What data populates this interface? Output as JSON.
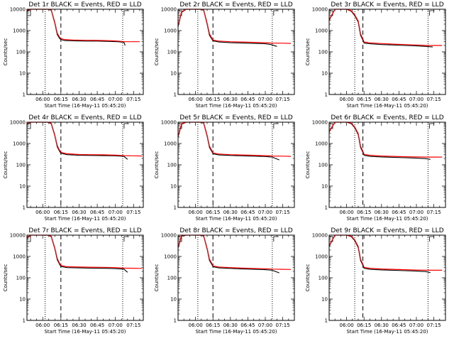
{
  "chart_data": {
    "type": "line",
    "layout": "3x3 grid",
    "x_tick_labels": [
      "06:00",
      "06:15",
      "06:30",
      "06:45",
      "07:00",
      "07:15"
    ],
    "y_tick_labels": [
      "1",
      "10",
      "100",
      "1000",
      "10000"
    ],
    "ylabel": "Counts/sec",
    "xlabel": "Start Time (16-May-11 05:45:20)",
    "yscale": "log",
    "ylim": [
      1,
      10000
    ],
    "grid": false,
    "colors": {
      "events": "#000000",
      "lld": "#ff0000",
      "markers": "#000000"
    },
    "panels": [
      {
        "title": "Det 1r BLACK = Events, RED = LLD",
        "xlim": [
          "05:47",
          "07:23"
        ],
        "dotted_lines": [
          "06:02",
          "07:06"
        ],
        "dashed_line": "06:15",
        "series": [
          {
            "name": "BLACK = Events",
            "x": [
              "05:47",
              "05:50",
              "05:55",
              "06:00",
              "06:04",
              "06:07",
              "06:10",
              "06:12",
              "06:14",
              "06:15",
              "06:18",
              "06:25",
              "06:35",
              "06:45",
              "06:55",
              "07:02",
              "07:07",
              "07:08"
            ],
            "values": [
              8500,
              10000,
              10000,
              10000,
              10000,
              9000,
              2200,
              650,
              420,
              380,
              340,
              330,
              320,
              320,
              310,
              300,
              280,
              200
            ]
          },
          {
            "name": "RED = LLD",
            "x": [
              "05:47",
              "05:50",
              "05:55",
              "06:00",
              "06:04",
              "06:07",
              "06:10",
              "06:12",
              "06:14",
              "06:15",
              "06:18",
              "06:25",
              "06:35",
              "06:45",
              "06:55",
              "07:02",
              "07:07",
              "07:15",
              "07:20"
            ],
            "values": [
              9000,
              10000,
              10000,
              10000,
              10000,
              9500,
              2400,
              750,
              480,
              420,
              380,
              360,
              350,
              345,
              335,
              320,
              300,
              300,
              300
            ]
          }
        ]
      },
      {
        "title": "Det 2r BLACK = Events, RED = LLD",
        "xlim": [
          "05:45",
          "07:25"
        ],
        "dotted_lines": [
          "06:02",
          "07:06"
        ],
        "dashed_line": "06:15",
        "series": [
          {
            "name": "BLACK = Events",
            "x": [
              "05:45",
              "05:48",
              "05:52",
              "05:56",
              "06:00",
              "06:04",
              "06:07",
              "06:10",
              "06:12",
              "06:14",
              "06:15",
              "06:20",
              "06:30",
              "06:40",
              "06:50",
              "07:00",
              "07:05",
              "07:10"
            ],
            "values": [
              1500,
              7000,
              10000,
              10000,
              10000,
              10000,
              9000,
              2000,
              600,
              400,
              330,
              290,
              270,
              260,
              250,
              240,
              220,
              180
            ]
          },
          {
            "name": "RED = LLD",
            "x": [
              "05:45",
              "05:48",
              "05:52",
              "05:56",
              "06:00",
              "06:04",
              "06:07",
              "06:10",
              "06:12",
              "06:14",
              "06:15",
              "06:20",
              "06:30",
              "06:40",
              "06:50",
              "07:00",
              "07:05",
              "07:15",
              "07:22"
            ],
            "values": [
              1600,
              7500,
              10000,
              10000,
              10000,
              10000,
              9500,
              2200,
              700,
              450,
              360,
              320,
              300,
              290,
              280,
              270,
              260,
              255,
              250
            ]
          }
        ]
      },
      {
        "title": "Det 3r BLACK = Events, RED = LLD",
        "xlim": [
          "05:45",
          "07:25"
        ],
        "dotted_lines": [
          "06:07",
          "07:10"
        ],
        "dashed_line": "06:14",
        "series": [
          {
            "name": "BLACK = Events",
            "x": [
              "05:45",
              "05:50",
              "05:55",
              "06:00",
              "06:04",
              "06:07",
              "06:10",
              "06:12",
              "06:14",
              "06:15",
              "06:20",
              "06:30",
              "06:40",
              "06:50",
              "07:00",
              "07:08",
              "07:14"
            ],
            "values": [
              3000,
              10000,
              10000,
              10000,
              8000,
              5000,
              2500,
              600,
              350,
              260,
              240,
              220,
              210,
              200,
              190,
              180,
              170
            ]
          },
          {
            "name": "RED = LLD",
            "x": [
              "05:45",
              "05:50",
              "05:55",
              "06:00",
              "06:04",
              "06:07",
              "06:10",
              "06:12",
              "06:14",
              "06:15",
              "06:20",
              "06:30",
              "06:40",
              "06:50",
              "07:00",
              "07:08",
              "07:15",
              "07:22"
            ],
            "values": [
              3200,
              10000,
              10000,
              10000,
              8500,
              5500,
              2800,
              700,
              400,
              290,
              265,
              245,
              230,
              220,
              210,
              200,
              200,
              200
            ]
          }
        ]
      },
      {
        "title": "Det 4r BLACK = Events, RED = LLD",
        "xlim": [
          "05:47",
          "07:23"
        ],
        "dotted_lines": [
          "06:02",
          "07:06"
        ],
        "dashed_line": "06:15",
        "series": [
          {
            "name": "BLACK = Events",
            "x": [
              "05:47",
              "05:50",
              "05:55",
              "06:00",
              "06:04",
              "06:07",
              "06:10",
              "06:12",
              "06:14",
              "06:15",
              "06:20",
              "06:30",
              "06:40",
              "06:50",
              "07:00",
              "07:07",
              "07:10"
            ],
            "values": [
              8000,
              10000,
              10000,
              10000,
              10000,
              8500,
              2300,
              700,
              420,
              350,
              300,
              280,
              275,
              270,
              265,
              250,
              180
            ]
          },
          {
            "name": "RED = LLD",
            "x": [
              "05:47",
              "05:50",
              "05:55",
              "06:00",
              "06:04",
              "06:07",
              "06:10",
              "06:12",
              "06:14",
              "06:15",
              "06:20",
              "06:30",
              "06:40",
              "06:50",
              "07:00",
              "07:07",
              "07:15",
              "07:22"
            ],
            "values": [
              8500,
              10000,
              10000,
              10000,
              10000,
              9000,
              2500,
              800,
              470,
              390,
              330,
              305,
              300,
              295,
              285,
              270,
              265,
              260
            ]
          }
        ]
      },
      {
        "title": "Det 5r BLACK = Events, RED = LLD",
        "xlim": [
          "05:45",
          "07:25"
        ],
        "dotted_lines": [
          "06:02",
          "07:06"
        ],
        "dashed_line": "06:15",
        "series": [
          {
            "name": "BLACK = Events",
            "x": [
              "05:45",
              "05:48",
              "05:52",
              "05:56",
              "06:00",
              "06:04",
              "06:07",
              "06:10",
              "06:12",
              "06:14",
              "06:15",
              "06:20",
              "06:30",
              "06:40",
              "06:50",
              "07:00",
              "07:06",
              "07:12"
            ],
            "values": [
              2000,
              8000,
              10000,
              10000,
              10000,
              10000,
              9000,
              2200,
              650,
              420,
              330,
              290,
              275,
              265,
              255,
              245,
              230,
              170
            ]
          },
          {
            "name": "RED = LLD",
            "x": [
              "05:45",
              "05:48",
              "05:52",
              "05:56",
              "06:00",
              "06:04",
              "06:07",
              "06:10",
              "06:12",
              "06:14",
              "06:15",
              "06:20",
              "06:30",
              "06:40",
              "06:50",
              "07:00",
              "07:06",
              "07:15",
              "07:22"
            ],
            "values": [
              2200,
              8500,
              10000,
              10000,
              10000,
              10000,
              9500,
              2400,
              750,
              470,
              360,
              320,
              300,
              290,
              280,
              270,
              260,
              255,
              250
            ]
          }
        ]
      },
      {
        "title": "Det 6r BLACK = Events, RED = LLD",
        "xlim": [
          "05:45",
          "07:25"
        ],
        "dotted_lines": [
          "06:07",
          "07:10"
        ],
        "dashed_line": "06:14",
        "series": [
          {
            "name": "BLACK = Events",
            "x": [
              "05:45",
              "05:50",
              "05:55",
              "06:00",
              "06:04",
              "06:07",
              "06:10",
              "06:12",
              "06:14",
              "06:15",
              "06:20",
              "06:30",
              "06:40",
              "06:50",
              "07:00",
              "07:08",
              "07:12"
            ],
            "values": [
              3500,
              10000,
              10000,
              10000,
              8500,
              5500,
              2600,
              650,
              380,
              280,
              250,
              235,
              225,
              215,
              205,
              195,
              180
            ]
          },
          {
            "name": "RED = LLD",
            "x": [
              "05:45",
              "05:50",
              "05:55",
              "06:00",
              "06:04",
              "06:07",
              "06:10",
              "06:12",
              "06:14",
              "06:15",
              "06:20",
              "06:30",
              "06:40",
              "06:50",
              "07:00",
              "07:08",
              "07:15",
              "07:22"
            ],
            "values": [
              3700,
              10000,
              10000,
              10000,
              9000,
              6000,
              2900,
              750,
              430,
              310,
              280,
              260,
              250,
              240,
              235,
              230,
              230,
              230
            ]
          }
        ]
      },
      {
        "title": "Det 7r BLACK = Events, RED = LLD",
        "xlim": [
          "05:47",
          "07:23"
        ],
        "dotted_lines": [
          "06:02",
          "07:06"
        ],
        "dashed_line": "06:15",
        "series": [
          {
            "name": "BLACK = Events",
            "x": [
              "05:47",
              "05:50",
              "05:55",
              "06:00",
              "06:04",
              "06:07",
              "06:10",
              "06:12",
              "06:14",
              "06:15",
              "06:20",
              "06:30",
              "06:40",
              "06:50",
              "07:00",
              "07:07",
              "07:10"
            ],
            "values": [
              7000,
              10000,
              10000,
              10000,
              10000,
              8500,
              2300,
              700,
              420,
              340,
              300,
              290,
              285,
              280,
              270,
              255,
              180
            ]
          },
          {
            "name": "RED = LLD",
            "x": [
              "05:47",
              "05:50",
              "05:55",
              "06:00",
              "06:04",
              "06:07",
              "06:10",
              "06:12",
              "06:14",
              "06:15",
              "06:20",
              "06:30",
              "06:40",
              "06:50",
              "07:00",
              "07:07",
              "07:15",
              "07:22"
            ],
            "values": [
              7500,
              10000,
              10000,
              10000,
              10000,
              9000,
              2500,
              800,
              470,
              380,
              330,
              320,
              315,
              310,
              300,
              285,
              280,
              275
            ]
          }
        ]
      },
      {
        "title": "Det 8r BLACK = Events, RED = LLD",
        "xlim": [
          "05:45",
          "07:25"
        ],
        "dotted_lines": [
          "06:02",
          "07:06"
        ],
        "dashed_line": "06:15",
        "series": [
          {
            "name": "BLACK = Events",
            "x": [
              "05:45",
              "05:48",
              "05:52",
              "05:56",
              "06:00",
              "06:04",
              "06:07",
              "06:10",
              "06:12",
              "06:14",
              "06:15",
              "06:20",
              "06:30",
              "06:40",
              "06:50",
              "07:00",
              "07:06",
              "07:12"
            ],
            "values": [
              2500,
              9000,
              10000,
              10000,
              10000,
              10000,
              9000,
              2200,
              650,
              420,
              330,
              290,
              275,
              260,
              250,
              240,
              225,
              170
            ]
          },
          {
            "name": "RED = LLD",
            "x": [
              "05:45",
              "05:48",
              "05:52",
              "05:56",
              "06:00",
              "06:04",
              "06:07",
              "06:10",
              "06:12",
              "06:14",
              "06:15",
              "06:20",
              "06:30",
              "06:40",
              "06:50",
              "07:00",
              "07:06",
              "07:15",
              "07:22"
            ],
            "values": [
              2700,
              9500,
              10000,
              10000,
              10000,
              10000,
              9500,
              2400,
              750,
              470,
              360,
              320,
              300,
              285,
              275,
              265,
              255,
              250,
              245
            ]
          }
        ]
      },
      {
        "title": "Det 9r BLACK = Events, RED = LLD",
        "xlim": [
          "05:45",
          "07:25"
        ],
        "dotted_lines": [
          "06:07",
          "07:10"
        ],
        "dashed_line": "06:14",
        "series": [
          {
            "name": "BLACK = Events",
            "x": [
              "05:45",
              "05:50",
              "05:55",
              "06:00",
              "06:04",
              "06:07",
              "06:10",
              "06:12",
              "06:14",
              "06:15",
              "06:20",
              "06:30",
              "06:40",
              "06:50",
              "07:00",
              "07:08",
              "07:12"
            ],
            "values": [
              3000,
              10000,
              10000,
              10000,
              8500,
              5500,
              2600,
              650,
              380,
              280,
              250,
              235,
              225,
              215,
              205,
              195,
              175
            ]
          },
          {
            "name": "RED = LLD",
            "x": [
              "05:45",
              "05:50",
              "05:55",
              "06:00",
              "06:04",
              "06:07",
              "06:10",
              "06:12",
              "06:14",
              "06:15",
              "06:20",
              "06:30",
              "06:40",
              "06:50",
              "07:00",
              "07:08",
              "07:15",
              "07:22"
            ],
            "values": [
              3200,
              10000,
              10000,
              10000,
              9000,
              6000,
              2900,
              750,
              430,
              310,
              280,
              260,
              250,
              240,
              230,
              225,
              225,
              225
            ]
          }
        ]
      }
    ]
  }
}
